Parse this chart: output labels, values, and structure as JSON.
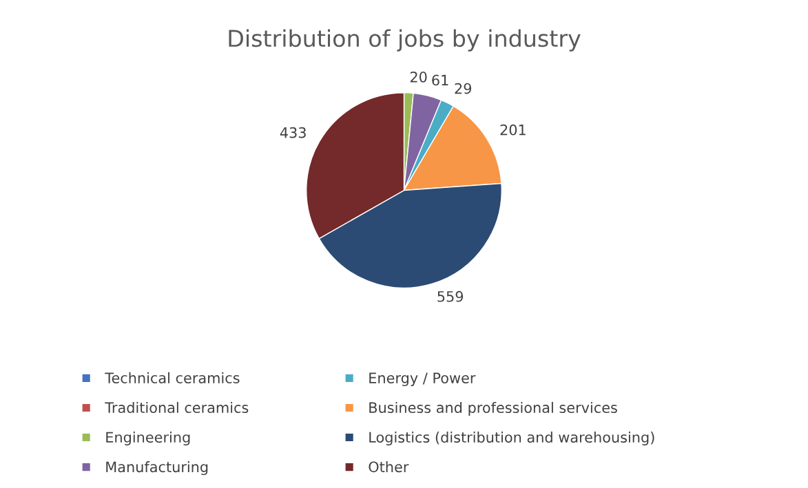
{
  "chart_data": {
    "type": "pie",
    "title": "Distribution of jobs by industry",
    "categories": [
      "Technical ceramics",
      "Traditional ceramics",
      "Engineering",
      "Manufacturing",
      "Energy / Power",
      "Business and professional services",
      "Logistics (distribution and warehousing)",
      "Other"
    ],
    "values": [
      null,
      null,
      20,
      61,
      29,
      201,
      559,
      433
    ],
    "colors": [
      "#4472c4",
      "#c0504d",
      "#9bbb59",
      "#8064a2",
      "#4bacc6",
      "#f79646",
      "#2b4b74",
      "#74292a"
    ],
    "data_labels": true,
    "legend": "bottom"
  }
}
